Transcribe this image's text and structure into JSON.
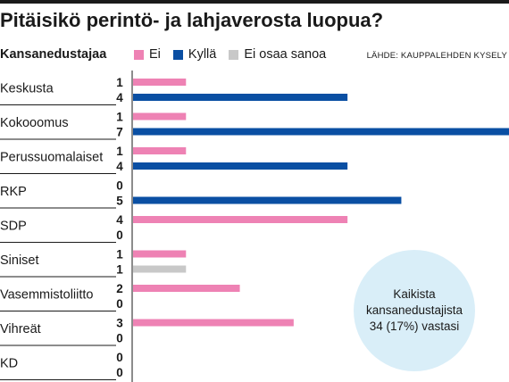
{
  "title": "Pitäisikö perintö- ja lahjaverosta luopua?",
  "subhead": "Kansanedustajaa",
  "source": "LÄHDE: KAUPPALEHDEN KYSELY",
  "legend": [
    {
      "label": "Ei",
      "color": "#ee82b4"
    },
    {
      "label": "Kyllä",
      "color": "#0a4fa3"
    },
    {
      "label": "Ei osaa sanoa",
      "color": "#c8c8c8"
    }
  ],
  "callout": "Kaikista kansanedustajista 34 (17%) vastasi",
  "chart_data": {
    "type": "bar",
    "categories": [
      "Keskusta",
      "Kokooomus",
      "Perussuomalaiset",
      "RKP",
      "SDP",
      "Siniset",
      "Vasemmistoliitto",
      "Vihreät",
      "KD"
    ],
    "rows": [
      {
        "bars": [
          {
            "series": "Ei",
            "value": 1
          },
          {
            "series": "Kyllä",
            "value": 4
          }
        ]
      },
      {
        "bars": [
          {
            "series": "Ei",
            "value": 1
          },
          {
            "series": "Kyllä",
            "value": 7
          }
        ]
      },
      {
        "bars": [
          {
            "series": "Ei",
            "value": 1
          },
          {
            "series": "Kyllä",
            "value": 4
          }
        ]
      },
      {
        "bars": [
          {
            "series": "Ei",
            "value": 0
          },
          {
            "series": "Kyllä",
            "value": 5
          }
        ]
      },
      {
        "bars": [
          {
            "series": "Ei",
            "value": 4
          },
          {
            "series": "Kyllä",
            "value": 0
          }
        ]
      },
      {
        "bars": [
          {
            "series": "Ei",
            "value": 1
          },
          {
            "series": "Ei osaa sanoa",
            "value": 1
          }
        ]
      },
      {
        "bars": [
          {
            "series": "Ei",
            "value": 2
          },
          {
            "series": "Kyllä",
            "value": 0
          }
        ]
      },
      {
        "bars": [
          {
            "series": "Ei",
            "value": 3
          },
          {
            "series": "Kyllä",
            "value": 0
          }
        ]
      },
      {
        "bars": [
          {
            "series": "Ei",
            "value": 0
          },
          {
            "series": "Kyllä",
            "value": 0
          }
        ]
      }
    ],
    "xlim": [
      0,
      7
    ]
  }
}
